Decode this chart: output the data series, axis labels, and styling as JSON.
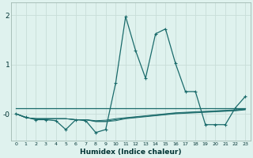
{
  "xlabel": "Humidex (Indice chaleur)",
  "bg_color": "#dff2ee",
  "grid_color": "#c8ddd8",
  "line_color": "#1a6b6b",
  "spine_color": "#a0b8b0",
  "xlim": [
    -0.5,
    23.5
  ],
  "ylim": [
    -0.55,
    2.25
  ],
  "yticks": [
    0,
    1,
    2
  ],
  "ytick_labels": [
    "-0",
    "1",
    "2"
  ],
  "xticks": [
    0,
    1,
    2,
    3,
    4,
    5,
    6,
    7,
    8,
    9,
    10,
    11,
    12,
    13,
    14,
    15,
    16,
    17,
    18,
    19,
    20,
    21,
    22,
    23
  ],
  "series_main": [
    0.0,
    -0.07,
    -0.12,
    -0.12,
    -0.14,
    -0.32,
    -0.12,
    -0.14,
    -0.38,
    -0.32,
    0.62,
    1.97,
    1.28,
    0.72,
    1.62,
    1.72,
    1.02,
    0.45,
    0.45,
    -0.22,
    -0.22,
    -0.22,
    0.12,
    0.35
  ],
  "series_flat": [
    0.12,
    0.12,
    0.12,
    0.12,
    0.12,
    0.12,
    0.12,
    0.12,
    0.12,
    0.12,
    0.12,
    0.12,
    0.12,
    0.12,
    0.12,
    0.12,
    0.12,
    0.12,
    0.12,
    0.12,
    0.12,
    0.12,
    0.12,
    0.12
  ],
  "series_lower1": [
    0.0,
    -0.08,
    -0.1,
    -0.1,
    -0.1,
    -0.1,
    -0.12,
    -0.12,
    -0.16,
    -0.16,
    -0.14,
    -0.1,
    -0.08,
    -0.06,
    -0.04,
    -0.02,
    0.0,
    0.01,
    0.02,
    0.03,
    0.04,
    0.05,
    0.06,
    0.08
  ],
  "series_lower2": [
    0.0,
    -0.08,
    -0.1,
    -0.1,
    -0.1,
    -0.1,
    -0.12,
    -0.12,
    -0.15,
    -0.15,
    -0.12,
    -0.09,
    -0.07,
    -0.05,
    -0.03,
    -0.01,
    0.01,
    0.02,
    0.03,
    0.04,
    0.05,
    0.06,
    0.07,
    0.09
  ],
  "series_lower3": [
    0.0,
    -0.08,
    -0.1,
    -0.1,
    -0.1,
    -0.1,
    -0.12,
    -0.12,
    -0.14,
    -0.13,
    -0.1,
    -0.08,
    -0.06,
    -0.04,
    -0.02,
    0.0,
    0.02,
    0.03,
    0.04,
    0.05,
    0.06,
    0.07,
    0.08,
    0.1
  ]
}
